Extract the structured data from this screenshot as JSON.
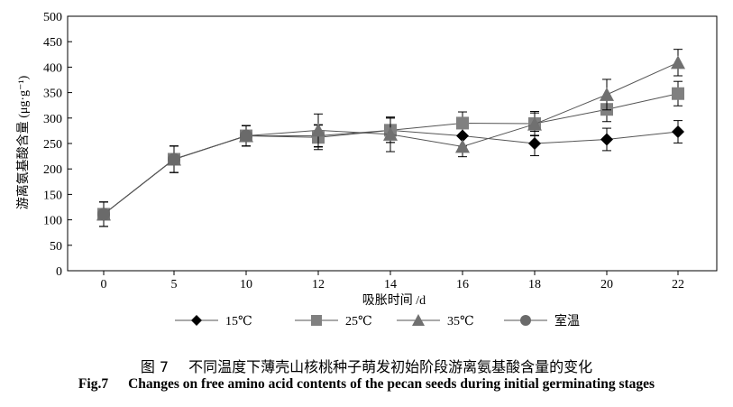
{
  "chart_data": {
    "type": "line",
    "ylabel": "游离氨基酸含量 (μg·g⁻¹)",
    "xlabel": "吸胀时间 /d",
    "ylim": [
      0,
      500
    ],
    "yticks": [
      0,
      50,
      100,
      150,
      200,
      250,
      300,
      350,
      400,
      450,
      500
    ],
    "xticks": [
      0,
      5,
      10,
      12,
      14,
      16,
      18,
      20,
      22
    ],
    "grid": false,
    "legend_position": "bottom",
    "series": [
      {
        "name": "15℃",
        "marker": "diamond",
        "color": "#000000",
        "x": [
          0,
          5,
          10,
          12,
          14,
          16,
          18,
          20,
          22
        ],
        "y": [
          111,
          219,
          265,
          265,
          276,
          265,
          250,
          258,
          273
        ],
        "err": [
          24,
          26,
          20,
          22,
          24,
          20,
          24,
          22,
          22
        ]
      },
      {
        "name": "25℃",
        "marker": "square",
        "color": "#808080",
        "x": [
          0,
          5,
          10,
          12,
          14,
          16,
          18,
          20,
          22
        ],
        "y": [
          111,
          219,
          265,
          262,
          276,
          290,
          289,
          317,
          348
        ],
        "err": [
          24,
          26,
          20,
          24,
          24,
          22,
          24,
          24,
          24
        ]
      },
      {
        "name": "35℃",
        "marker": "triangle",
        "color": "#707070",
        "x": [
          0,
          5,
          10,
          12,
          14,
          16,
          18,
          20,
          22
        ],
        "y": [
          111,
          219,
          265,
          276,
          268,
          244,
          288,
          346,
          409
        ],
        "err": [
          24,
          26,
          20,
          32,
          34,
          20,
          22,
          30,
          26
        ]
      },
      {
        "name": "室温",
        "marker": "circle",
        "color": "#6a6a6a",
        "x": [
          0,
          5,
          10
        ],
        "y": [
          111,
          219,
          265
        ],
        "err": [
          24,
          26,
          20
        ]
      }
    ]
  },
  "caption": {
    "cn_label": "图 7",
    "cn_text": "不同温度下薄壳山核桃种子萌发初始阶段游离氨基酸含量的变化",
    "en_label": "Fig.7",
    "en_text": "Changes on free amino acid contents of the pecan seeds during initial germinating stages"
  }
}
